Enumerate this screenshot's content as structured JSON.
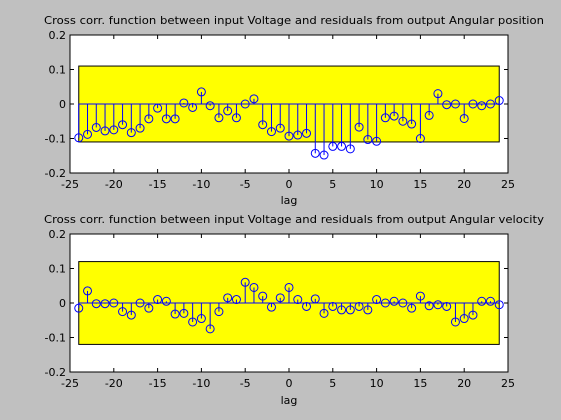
{
  "figure": {
    "background": "#c0c0c0",
    "colors": {
      "axes_bg": "#ffffff",
      "band": "#ffff00",
      "stem": "#0000ff",
      "text": "#000000"
    }
  },
  "chart_data": [
    {
      "type": "stem",
      "title": "Cross corr. function between input Voltage and residuals from output Angular position",
      "xlabel": "lag",
      "ylabel": "",
      "xlim": [
        -25,
        25
      ],
      "ylim": [
        -0.2,
        0.2
      ],
      "xticks": [
        "-25",
        "-20",
        "-15",
        "-10",
        "-5",
        "0",
        "5",
        "10",
        "15",
        "20",
        "25"
      ],
      "yticks": [
        "0.2",
        "0.1",
        "0",
        "-0.1",
        "-0.2"
      ],
      "confidence_band": [
        -0.11,
        0.11
      ],
      "x": [
        -24,
        -23,
        -22,
        -21,
        -20,
        -19,
        -18,
        -17,
        -16,
        -15,
        -14,
        -13,
        -12,
        -11,
        -10,
        -9,
        -8,
        -7,
        -6,
        -5,
        -4,
        -3,
        -2,
        -1,
        0,
        1,
        2,
        3,
        4,
        5,
        6,
        7,
        8,
        9,
        10,
        11,
        12,
        13,
        14,
        15,
        16,
        17,
        18,
        19,
        20,
        21,
        22,
        23,
        24
      ],
      "values": [
        -0.098,
        -0.088,
        -0.068,
        -0.078,
        -0.075,
        -0.06,
        -0.083,
        -0.07,
        -0.043,
        -0.012,
        -0.043,
        -0.043,
        0.003,
        -0.01,
        0.035,
        -0.005,
        -0.04,
        -0.02,
        -0.04,
        0.0,
        0.015,
        -0.06,
        -0.08,
        -0.07,
        -0.093,
        -0.09,
        -0.085,
        -0.143,
        -0.148,
        -0.123,
        -0.123,
        -0.13,
        -0.067,
        -0.103,
        -0.108,
        -0.04,
        -0.035,
        -0.05,
        -0.058,
        -0.1,
        -0.033,
        0.03,
        -0.002,
        0.0,
        -0.042,
        0.0,
        -0.005,
        0.0,
        0.01
      ]
    },
    {
      "type": "stem",
      "title": "Cross corr. function between input Voltage and residuals from output Angular velocity",
      "xlabel": "lag",
      "ylabel": "",
      "xlim": [
        -25,
        25
      ],
      "ylim": [
        -0.2,
        0.2
      ],
      "xticks": [
        "-25",
        "-20",
        "-15",
        "-10",
        "-5",
        "0",
        "5",
        "10",
        "15",
        "20",
        "25"
      ],
      "yticks": [
        "0.2",
        "0.1",
        "0",
        "-0.1",
        "-0.2"
      ],
      "confidence_band": [
        -0.12,
        0.12
      ],
      "x": [
        -24,
        -23,
        -22,
        -21,
        -20,
        -19,
        -18,
        -17,
        -16,
        -15,
        -14,
        -13,
        -12,
        -11,
        -10,
        -9,
        -8,
        -7,
        -6,
        -5,
        -4,
        -3,
        -2,
        -1,
        0,
        1,
        2,
        3,
        4,
        5,
        6,
        7,
        8,
        9,
        10,
        11,
        12,
        13,
        14,
        15,
        16,
        17,
        18,
        19,
        20,
        21,
        22,
        23,
        24
      ],
      "values": [
        -0.015,
        0.035,
        -0.002,
        -0.002,
        0.0,
        -0.025,
        -0.035,
        0.0,
        -0.015,
        0.01,
        0.005,
        -0.032,
        -0.03,
        -0.055,
        -0.045,
        -0.075,
        -0.025,
        0.015,
        0.01,
        0.06,
        0.045,
        0.02,
        -0.012,
        0.015,
        0.045,
        0.01,
        -0.01,
        0.012,
        -0.03,
        -0.01,
        -0.02,
        -0.02,
        -0.01,
        -0.02,
        0.01,
        0.0,
        0.005,
        0.0,
        -0.015,
        0.02,
        -0.008,
        -0.005,
        -0.01,
        -0.055,
        -0.045,
        -0.035,
        0.005,
        0.005,
        -0.005
      ]
    }
  ]
}
